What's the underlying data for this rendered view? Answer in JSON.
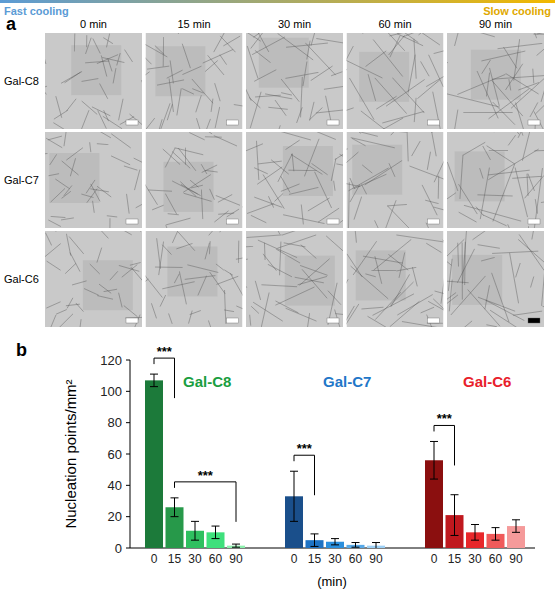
{
  "image_grid": {
    "panel": "a",
    "cooling_labels": [
      "Fast cooling",
      "Slow cooling"
    ],
    "columns": [
      "0 min",
      "15 min",
      "30 min",
      "60 min",
      "90 min"
    ],
    "rows": [
      "Gal-C8",
      "Gal-C7",
      "Gal-C6"
    ]
  },
  "chart_data": {
    "type": "bar",
    "panel": "b",
    "y_label": "Nucleation points/mm²",
    "x_label": "(min)",
    "categories": [
      "0",
      "15",
      "30",
      "60",
      "90"
    ],
    "series": [
      {
        "name": "Gal-C8",
        "color": "#1a9e3f",
        "colors": [
          "#1c7a3a",
          "#27994a",
          "#2fc060",
          "#3fe07c",
          "#8ef0ae"
        ],
        "values": [
          107,
          26,
          11,
          10,
          1.5
        ],
        "errors": [
          4,
          6,
          6,
          4,
          1
        ]
      },
      {
        "name": "Gal-C7",
        "color": "#1f77c8",
        "colors": [
          "#1a4f8b",
          "#1f73c4",
          "#2b8fdd",
          "#57a9e8",
          "#9dd0f5"
        ],
        "values": [
          33,
          5,
          4,
          2,
          1.5
        ],
        "errors": [
          16,
          4,
          2,
          1.5,
          2
        ]
      },
      {
        "name": "Gal-C6",
        "color": "#e8202a",
        "colors": [
          "#8b0f0f",
          "#c0181e",
          "#e8282b",
          "#f05a5a",
          "#f59a9a"
        ],
        "values": [
          56,
          21,
          10,
          9,
          14
        ],
        "errors": [
          12,
          13,
          5,
          4,
          4
        ]
      }
    ],
    "ylim": [
      0,
      120
    ],
    "yticks": [
      0,
      20,
      40,
      60,
      80,
      100,
      120
    ],
    "grid": false,
    "annotations": [
      {
        "text": "***",
        "series": 0,
        "from": 0,
        "to": 1
      },
      {
        "text": "***",
        "series": 0,
        "from": 1,
        "to": 4
      },
      {
        "text": "***",
        "series": 1,
        "from": 0,
        "to": 1
      },
      {
        "text": "***",
        "series": 2,
        "from": 0,
        "to": 1
      }
    ]
  }
}
